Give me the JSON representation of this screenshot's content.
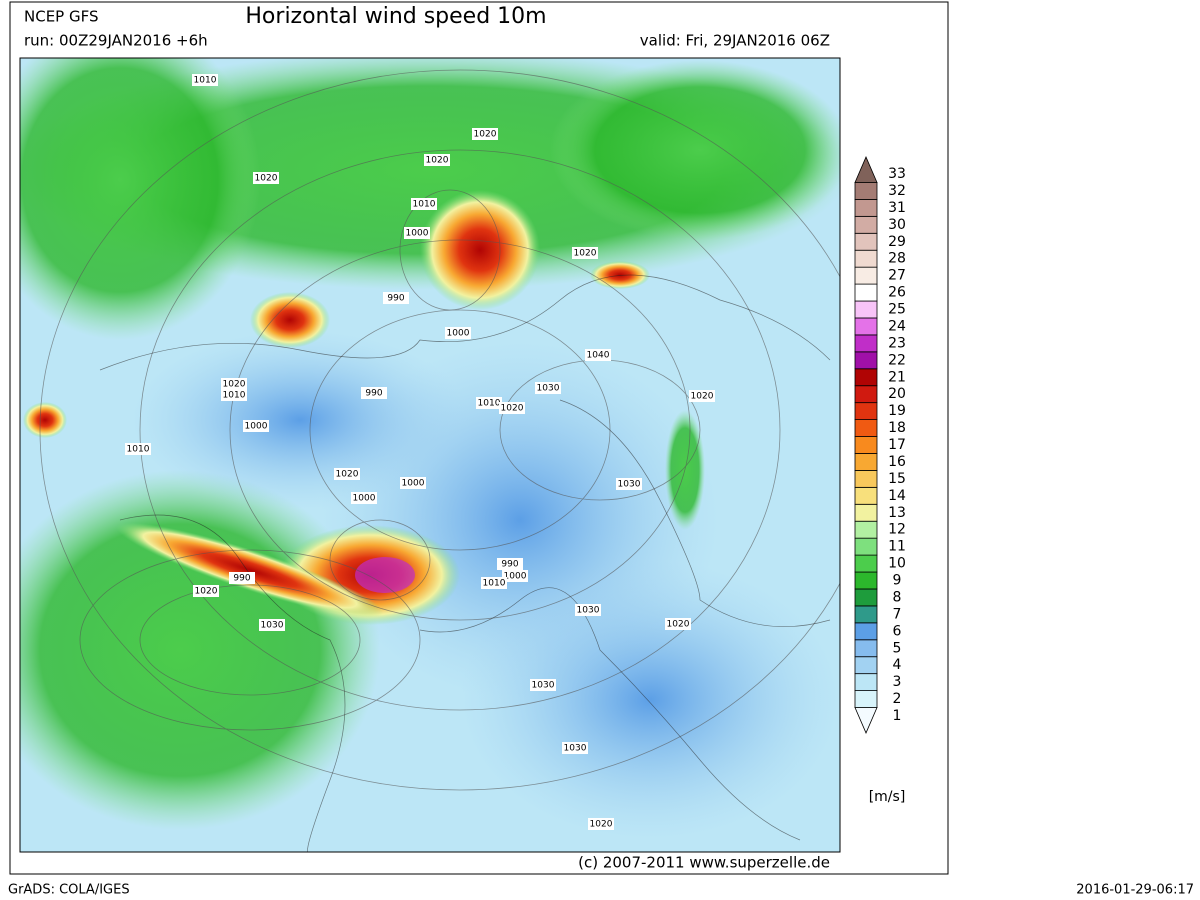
{
  "header": {
    "model": "NCEP GFS",
    "title": "Horizontal wind speed 10m",
    "run": "run: 00Z29JAN2016 +6h",
    "valid": "valid: Fri, 29JAN2016 06Z"
  },
  "map": {
    "isobar_labels": [
      "1010",
      "1020",
      "1020",
      "1020",
      "1010",
      "1000",
      "990",
      "1000",
      "1020",
      "1040",
      "1030",
      "1020",
      "1010",
      "1020",
      "1020",
      "1010",
      "1000",
      "990",
      "1010",
      "1020",
      "1000",
      "1000",
      "990",
      "1020",
      "1030",
      "1030",
      "990",
      "1000",
      "1010",
      "1030",
      "1020",
      "1030",
      "1030",
      "1020"
    ]
  },
  "legend": {
    "unit": "[m/s]",
    "levels": [
      {
        "label": "1",
        "color": "#f4fbff"
      },
      {
        "label": "2",
        "color": "#d8f4fb"
      },
      {
        "label": "3",
        "color": "#bce6f6"
      },
      {
        "label": "4",
        "color": "#a2d2f2"
      },
      {
        "label": "5",
        "color": "#86bcee"
      },
      {
        "label": "6",
        "color": "#5c9fe6"
      },
      {
        "label": "7",
        "color": "#2f9a8a"
      },
      {
        "label": "8",
        "color": "#1e9c3c"
      },
      {
        "label": "9",
        "color": "#2cb82c"
      },
      {
        "label": "10",
        "color": "#4ccd4c"
      },
      {
        "label": "11",
        "color": "#7ee07e"
      },
      {
        "label": "12",
        "color": "#b2f0a2"
      },
      {
        "label": "13",
        "color": "#f2f2a0"
      },
      {
        "label": "14",
        "color": "#f8e07c"
      },
      {
        "label": "15",
        "color": "#f8c85c"
      },
      {
        "label": "16",
        "color": "#f8a832"
      },
      {
        "label": "17",
        "color": "#f88a1e"
      },
      {
        "label": "18",
        "color": "#f05a12"
      },
      {
        "label": "19",
        "color": "#e03410"
      },
      {
        "label": "20",
        "color": "#d01a10"
      },
      {
        "label": "21",
        "color": "#b00404"
      },
      {
        "label": "22",
        "color": "#a010a8"
      },
      {
        "label": "23",
        "color": "#c02ec8"
      },
      {
        "label": "24",
        "color": "#e472e8"
      },
      {
        "label": "25",
        "color": "#f8c4f8"
      },
      {
        "label": "26",
        "color": "#ffffff"
      },
      {
        "label": "27",
        "color": "#f8ece4"
      },
      {
        "label": "28",
        "color": "#f0dad0"
      },
      {
        "label": "29",
        "color": "#e2c4bc"
      },
      {
        "label": "30",
        "color": "#d2aca4"
      },
      {
        "label": "31",
        "color": "#c29890"
      },
      {
        "label": "32",
        "color": "#a47c74"
      },
      {
        "label": "33",
        "color": "#80625a"
      }
    ]
  },
  "footer": {
    "copyright": "(c) 2007-2011 www.superzelle.de",
    "software": "GrADS: COLA/IGES",
    "timestamp": "2016-01-29-06:17"
  }
}
